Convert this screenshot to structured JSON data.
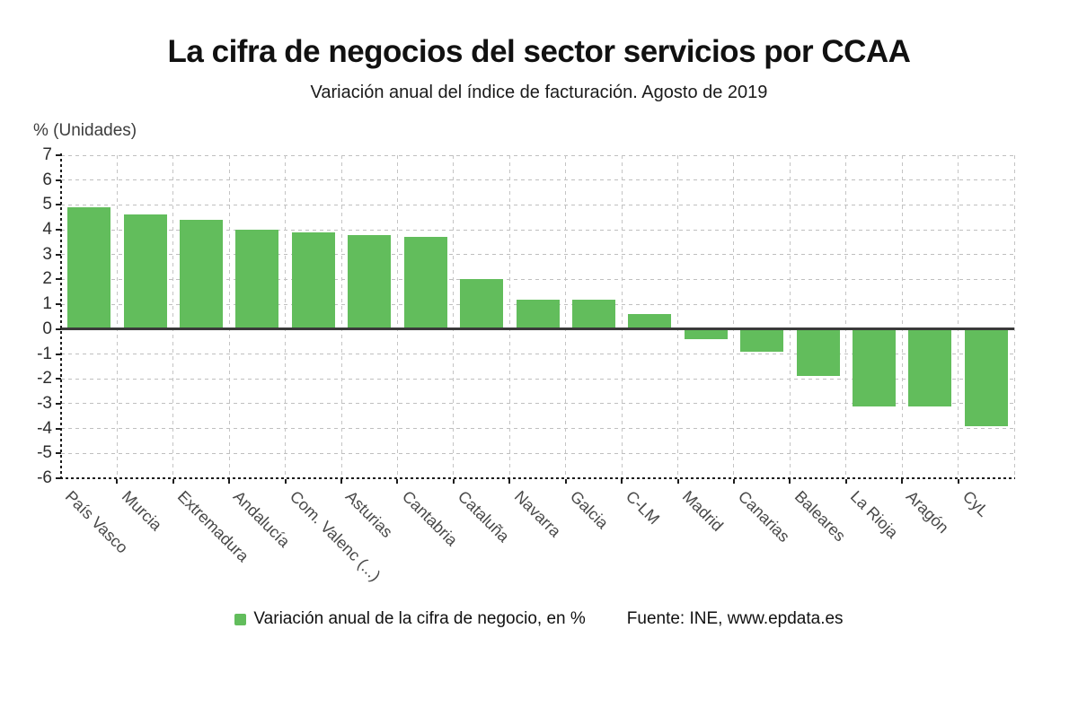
{
  "header": {
    "title": "La cifra de negocios del sector servicios por CCAA",
    "subtitle": "Variación anual del índice de facturación. Agosto de 2019"
  },
  "y_axis_title": "% (Unidades)",
  "legend": {
    "label": "Variación anual de la cifra de negocio, en %"
  },
  "source": "Fuente: INE, www.epdata.es",
  "colors": {
    "bar": "#62bd5c",
    "gridline": "#bfbfbf",
    "axis": "#1c1c1c",
    "zero_line": "#3a3a3a"
  },
  "chart_data": {
    "type": "bar",
    "title": "La cifra de negocios del sector servicios por CCAA",
    "subtitle": "Variación anual del índice de facturación. Agosto de 2019",
    "xlabel": "",
    "ylabel": "% (Unidades)",
    "categories": [
      "País Vasco",
      "Murcia",
      "Extremadura",
      "Andalucía",
      "Com. Valenc (...)",
      "Asturias",
      "Cantabria",
      "Cataluña",
      "Navarra",
      "Galcia",
      "C-LM",
      "Madrid",
      "Canarias",
      "Baleares",
      "La Rioja",
      "Aragón",
      "CyL"
    ],
    "series": [
      {
        "name": "Variación anual de la cifra de negocio, en %",
        "values": [
          4.9,
          4.6,
          4.4,
          4.0,
          3.9,
          3.8,
          3.7,
          2.0,
          1.2,
          1.2,
          0.6,
          -0.4,
          -0.9,
          -1.9,
          -3.1,
          -3.1,
          -3.9
        ]
      }
    ],
    "ylim": [
      -6,
      7
    ],
    "ytick_step": 1,
    "grid": true,
    "legend_position": "bottom",
    "bar_color": "#62bd5c",
    "x_label_rotation_deg": 45
  }
}
